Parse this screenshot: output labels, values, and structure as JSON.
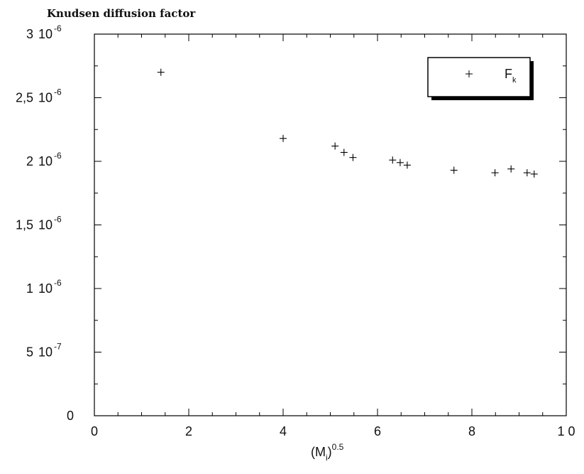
{
  "chart_data": {
    "type": "scatter",
    "title": "Knudsen diffusion factor",
    "xlabel": "(M_i)^0.5",
    "xlabel_base": "(M",
    "xlabel_sub": "i",
    "xlabel_close": ")",
    "xlabel_sup": "0.5",
    "xlim": [
      0,
      10
    ],
    "ylim": [
      0,
      3e-06
    ],
    "x_ticks": [
      {
        "value": 0,
        "label": "0"
      },
      {
        "value": 2,
        "label": "2"
      },
      {
        "value": 4,
        "label": "4"
      },
      {
        "value": 6,
        "label": "6"
      },
      {
        "value": 8,
        "label": "8"
      },
      {
        "value": 10,
        "label": "1 0"
      }
    ],
    "y_ticks": [
      {
        "value": 0,
        "mant": "0",
        "exp": ""
      },
      {
        "value": 5e-07,
        "mant": "5",
        "exp": "-7"
      },
      {
        "value": 1e-06,
        "mant": "1",
        "exp": "-6"
      },
      {
        "value": 1.5e-06,
        "mant": "1,5",
        "exp": "-6"
      },
      {
        "value": 2e-06,
        "mant": "2",
        "exp": "-6"
      },
      {
        "value": 2.5e-06,
        "mant": "2,5",
        "exp": "-6"
      },
      {
        "value": 3e-06,
        "mant": "3",
        "exp": "-6"
      }
    ],
    "y_tick_base": "10",
    "grid": false,
    "legend_position": "top-right",
    "series": [
      {
        "name": "F_k",
        "legend_base": "F",
        "legend_sub": "k",
        "marker": "plus",
        "color": "#000000",
        "x": [
          1.41,
          4.0,
          5.1,
          5.29,
          5.48,
          6.32,
          6.48,
          6.63,
          7.62,
          8.49,
          8.83,
          9.17,
          9.32
        ],
        "y": [
          2.7e-06,
          2.18e-06,
          2.12e-06,
          2.07e-06,
          2.03e-06,
          2.01e-06,
          1.99e-06,
          1.97e-06,
          1.93e-06,
          1.91e-06,
          1.94e-06,
          1.91e-06,
          1.9e-06
        ]
      }
    ]
  }
}
